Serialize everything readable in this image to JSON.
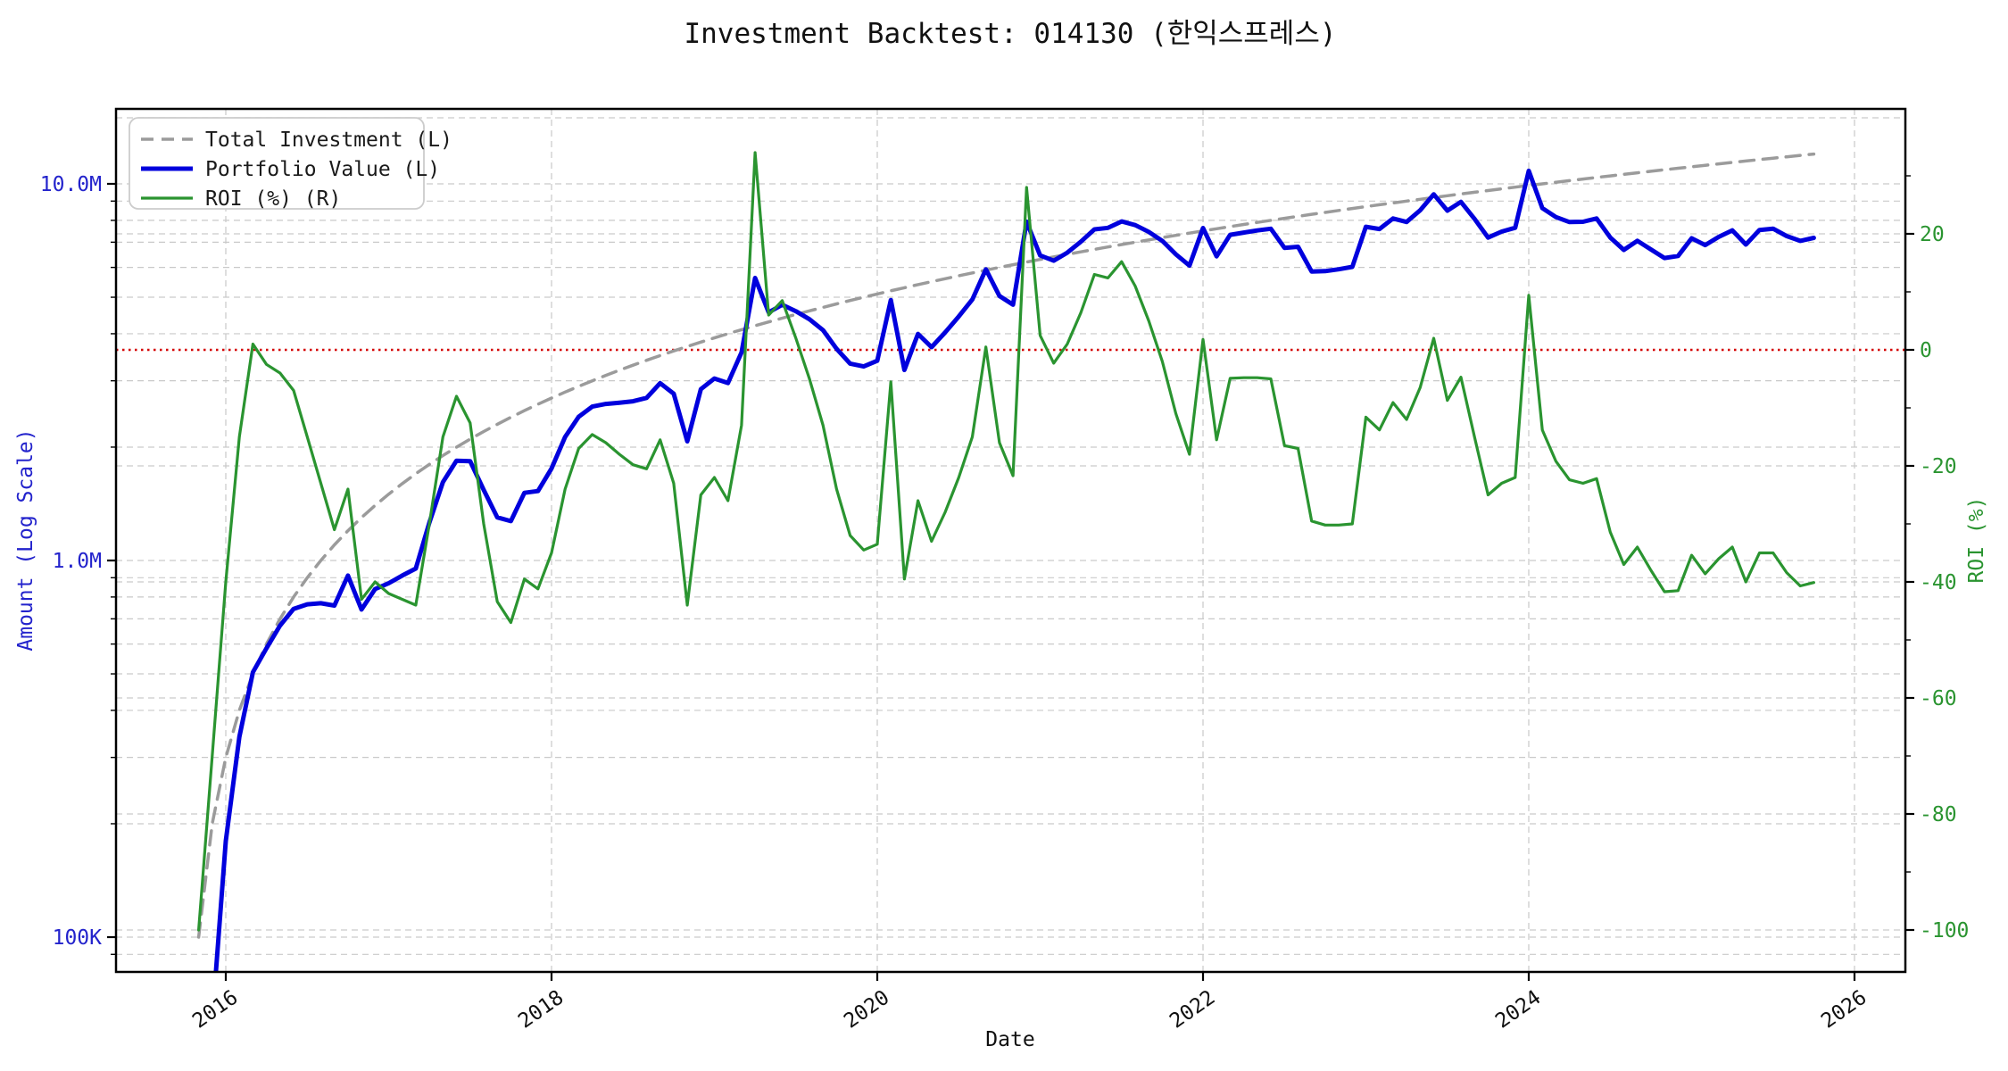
{
  "title": "Investment Backtest: 014130 (한익스프레스)",
  "chart_data": {
    "type": "line",
    "title": "Investment Backtest: 014130 (한익스프레스)",
    "xlabel": "Date",
    "x_axis": {
      "label": "Date",
      "ticks": [
        2016,
        2018,
        2020,
        2022,
        2024,
        2026
      ],
      "range_years": [
        2015.33,
        2026.33
      ]
    },
    "left_axis": {
      "label": "Amount (Log Scale)",
      "scale": "log",
      "color": "#2323cc",
      "range": [
        81000,
        15800000
      ],
      "ticks": [
        {
          "value": 100000,
          "label": "100K"
        },
        {
          "value": 1000000,
          "label": "1.0M"
        },
        {
          "value": 10000000,
          "label": "10.0M"
        }
      ],
      "minor_ticks": [
        9000000,
        8000000,
        7000000,
        6000000,
        5000000,
        4000000,
        3000000,
        2000000,
        900000,
        800000,
        700000,
        600000,
        500000,
        400000,
        300000,
        200000,
        90000
      ]
    },
    "right_axis": {
      "label": "ROI (%)",
      "scale": "linear",
      "color": "#2a9430",
      "range": [
        -107,
        41.5
      ],
      "ticks": [
        {
          "value": 20,
          "label": "20"
        },
        {
          "value": 0,
          "label": "0"
        },
        {
          "value": -20,
          "label": "-20"
        },
        {
          "value": -40,
          "label": "-40"
        },
        {
          "value": -60,
          "label": "-60"
        },
        {
          "value": -80,
          "label": "-80"
        },
        {
          "value": -100,
          "label": "-100"
        }
      ],
      "minor_ticks": [
        30,
        10,
        -10,
        -30,
        -50,
        -70,
        -90
      ],
      "extra_gridlines": [
        40
      ]
    },
    "zero_line": {
      "axis": "right",
      "value": 0,
      "color": "#d40000",
      "style": "dotted"
    },
    "legend": {
      "position": "upper-left"
    },
    "grid": true,
    "months": [
      "2015-11",
      "2015-12",
      "2016-01",
      "2016-02",
      "2016-03",
      "2016-04",
      "2016-05",
      "2016-06",
      "2016-07",
      "2016-08",
      "2016-09",
      "2016-10",
      "2016-11",
      "2016-12",
      "2017-01",
      "2017-02",
      "2017-03",
      "2017-04",
      "2017-05",
      "2017-06",
      "2017-07",
      "2017-08",
      "2017-09",
      "2017-10",
      "2017-11",
      "2017-12",
      "2018-01",
      "2018-02",
      "2018-03",
      "2018-04",
      "2018-05",
      "2018-06",
      "2018-07",
      "2018-08",
      "2018-09",
      "2018-10",
      "2018-11",
      "2018-12",
      "2019-01",
      "2019-02",
      "2019-03",
      "2019-04",
      "2019-05",
      "2019-06",
      "2019-07",
      "2019-08",
      "2019-09",
      "2019-10",
      "2019-11",
      "2019-12",
      "2020-01",
      "2020-02",
      "2020-03",
      "2020-04",
      "2020-05",
      "2020-06",
      "2020-07",
      "2020-08",
      "2020-09",
      "2020-10",
      "2020-11",
      "2020-12",
      "2021-01",
      "2021-02",
      "2021-03",
      "2021-04",
      "2021-05",
      "2021-06",
      "2021-07",
      "2021-08",
      "2021-09",
      "2021-10",
      "2021-11",
      "2021-12",
      "2022-01",
      "2022-02",
      "2022-03",
      "2022-04",
      "2022-05",
      "2022-06",
      "2022-07",
      "2022-08",
      "2022-09",
      "2022-10",
      "2022-11",
      "2022-12",
      "2023-01",
      "2023-02",
      "2023-03",
      "2023-04",
      "2023-05",
      "2023-06",
      "2023-07",
      "2023-08",
      "2023-09",
      "2023-10",
      "2023-11",
      "2023-12",
      "2024-01",
      "2024-02",
      "2024-03",
      "2024-04",
      "2024-05",
      "2024-06",
      "2024-07",
      "2024-08",
      "2024-09",
      "2024-10",
      "2024-11",
      "2024-12",
      "2025-01",
      "2025-02",
      "2025-03",
      "2025-04",
      "2025-05",
      "2025-06",
      "2025-07",
      "2025-08",
      "2025-09",
      "2025-10"
    ],
    "series": [
      {
        "name": "Total Investment (L)",
        "axis": "left",
        "color": "#9b9b9b",
        "style": "dashed",
        "linewidth": 3.5,
        "values": [
          100000,
          200000,
          300000,
          400000,
          500000,
          600000,
          700000,
          800000,
          900000,
          1000000,
          1100000,
          1200000,
          1300000,
          1400000,
          1500000,
          1600000,
          1700000,
          1800000,
          1900000,
          2000000,
          2100000,
          2200000,
          2300000,
          2400000,
          2500000,
          2600000,
          2700000,
          2800000,
          2900000,
          3000000,
          3100000,
          3200000,
          3300000,
          3400000,
          3500000,
          3600000,
          3700000,
          3800000,
          3900000,
          4000000,
          4100000,
          4200000,
          4300000,
          4400000,
          4500000,
          4600000,
          4700000,
          4800000,
          4900000,
          5000000,
          5100000,
          5200000,
          5300000,
          5400000,
          5500000,
          5600000,
          5700000,
          5800000,
          5900000,
          6000000,
          6100000,
          6200000,
          6300000,
          6400000,
          6500000,
          6600000,
          6700000,
          6800000,
          6900000,
          7000000,
          7100000,
          7200000,
          7300000,
          7400000,
          7500000,
          7600000,
          7700000,
          7800000,
          7900000,
          8000000,
          8100000,
          8200000,
          8300000,
          8400000,
          8500000,
          8600000,
          8700000,
          8800000,
          8900000,
          9000000,
          9100000,
          9200000,
          9300000,
          9400000,
          9500000,
          9600000,
          9700000,
          9800000,
          9900000,
          10000000,
          10100000,
          10200000,
          10300000,
          10400000,
          10500000,
          10600000,
          10700000,
          10800000,
          10900000,
          11000000,
          11100000,
          11200000,
          11300000,
          11400000,
          11500000,
          11600000,
          11700000,
          11800000,
          11900000,
          12000000
        ]
      },
      {
        "name": "Portfolio Value (L)",
        "axis": "left",
        "color": "#0000dd",
        "style": "solid",
        "linewidth": 5,
        "values": [
          0,
          60000,
          180000,
          340000,
          505000,
          585000,
          672000,
          744000,
          765000,
          770000,
          759000,
          912000,
          741000,
          840000,
          870000,
          912000,
          952000,
          1260000,
          1615000,
          1840000,
          1835400,
          1540000,
          1301800,
          1272000,
          1512500,
          1528800,
          1755000,
          2128000,
          2407000,
          2562000,
          2604000,
          2624000,
          2646600,
          2703000,
          2957500,
          2772000,
          2072000,
          2850000,
          3042000,
          2960000,
          3567000,
          5628000,
          4558000,
          4774000,
          4590000,
          4370000,
          4089000,
          3648000,
          3332000,
          3275000,
          3391500,
          4914000,
          3206500,
          3996000,
          3685000,
          4032000,
          4446000,
          4930000,
          5929500,
          5040000,
          4776300,
          7936000,
          6457500,
          6252800,
          6565000,
          7022400,
          7571000,
          7643200,
          7948800,
          7770000,
          7455000,
          7056000,
          6497000,
          6068000,
          7635000,
          6422000,
          7322700,
          7425600,
          7520800,
          7600000,
          6763500,
          6806000,
          5851500,
          5863200,
          5933000,
          6020000,
          7690800,
          7585600,
          8090100,
          7920000,
          8508500,
          9384000,
          8490900,
          8958200,
          8075000,
          7200000,
          7469000,
          7644000,
          10830600,
          8620000,
          8160800,
          7915200,
          7931000,
          8091200,
          7203000,
          6678000,
          7062000,
          6696000,
          6354700,
          6435000,
          7170600,
          6876800,
          7232000,
          7524000,
          6900000,
          7540000,
          7605000,
          7268800,
          7056700,
          7188000
        ]
      },
      {
        "name": "ROI (%) (R)",
        "axis": "right",
        "color": "#2a9430",
        "style": "solid",
        "linewidth": 3.2,
        "values": [
          -100,
          -70,
          -40,
          -15,
          1,
          -2.5,
          -4,
          -7,
          -15,
          -23,
          -31,
          -24,
          -43,
          -40,
          -42,
          -43,
          -44,
          -30,
          -15,
          -8,
          -12.6,
          -30,
          -43.4,
          -47,
          -39.5,
          -41.2,
          -35,
          -24,
          -17,
          -14.6,
          -16,
          -18,
          -19.8,
          -20.5,
          -15.5,
          -23,
          -44,
          -25,
          -22,
          -26,
          -13,
          34,
          6,
          8.5,
          2,
          -5,
          -13,
          -24,
          -32,
          -34.5,
          -33.5,
          -5.5,
          -39.5,
          -26,
          -33,
          -28,
          -22,
          -15,
          0.5,
          -16,
          -21.7,
          28,
          2.5,
          -2.3,
          1,
          6.4,
          13,
          12.4,
          15.2,
          11,
          5,
          -2,
          -11,
          -18,
          1.8,
          -15.5,
          -4.9,
          -4.8,
          -4.8,
          -5,
          -16.5,
          -17,
          -29.5,
          -30.2,
          -30.2,
          -30,
          -11.6,
          -13.8,
          -9.1,
          -12,
          -6.5,
          2,
          -8.7,
          -4.7,
          -15,
          -25,
          -23,
          -22,
          9.4,
          -13.8,
          -19.2,
          -22.4,
          -23,
          -22.2,
          -31.4,
          -37,
          -34,
          -38,
          -41.7,
          -41.5,
          -35.4,
          -38.6,
          -36,
          -34,
          -40,
          -35,
          -35,
          -38.4,
          -40.7,
          -40.1
        ]
      }
    ]
  }
}
